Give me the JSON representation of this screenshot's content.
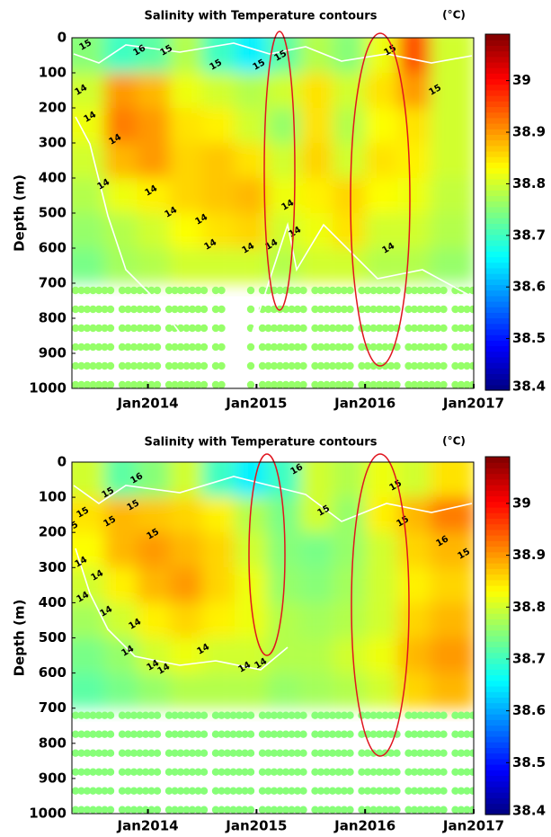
{
  "chart_data": [
    {
      "type": "heatmap",
      "title": "Salinity with Temperature contours",
      "colorbar_label": "(°C)",
      "ylabel": "Depth (m)",
      "xlim": [
        2013.3,
        2017.0
      ],
      "xticks": [
        {
          "value": 2014,
          "label": "Jan2014"
        },
        {
          "value": 2015,
          "label": "Jan2015"
        },
        {
          "value": 2016,
          "label": "Jan2016"
        },
        {
          "value": 2017,
          "label": "Jan2017"
        }
      ],
      "ylim": [
        0,
        1000
      ],
      "y_inverted": true,
      "yticks": [
        0,
        100,
        200,
        300,
        400,
        500,
        600,
        700,
        800,
        900,
        1000
      ],
      "x": [
        2013.45,
        2013.75,
        2014.05,
        2014.35,
        2014.65,
        2014.95,
        2015.25,
        2015.55,
        2015.85,
        2016.15,
        2016.45,
        2016.75
      ],
      "depths": [
        50,
        150,
        250,
        350,
        450,
        550,
        650
      ],
      "z": [
        [
          38.75,
          38.7,
          38.72,
          38.78,
          38.7,
          38.65,
          38.72,
          38.78,
          38.75,
          38.82,
          38.95,
          38.8
        ],
        [
          38.8,
          38.9,
          38.88,
          38.82,
          38.8,
          38.78,
          38.8,
          38.85,
          38.8,
          38.85,
          38.9,
          38.8
        ],
        [
          38.82,
          38.92,
          38.9,
          38.85,
          38.84,
          38.8,
          38.76,
          38.85,
          38.78,
          38.83,
          38.85,
          38.8
        ],
        [
          38.8,
          38.88,
          38.9,
          38.86,
          38.87,
          38.85,
          38.8,
          38.86,
          38.8,
          38.85,
          38.84,
          38.8
        ],
        [
          38.78,
          38.82,
          38.84,
          38.86,
          38.87,
          38.88,
          38.82,
          38.84,
          38.86,
          38.83,
          38.82,
          38.79
        ],
        [
          38.76,
          38.78,
          38.8,
          38.83,
          38.85,
          38.86,
          38.8,
          38.82,
          38.85,
          38.8,
          38.8,
          38.78
        ],
        [
          38.74,
          38.77,
          38.78,
          38.8,
          38.8,
          38.8,
          38.78,
          38.8,
          38.8,
          38.78,
          38.78,
          38.76
        ]
      ],
      "deep_value": 38.76,
      "contour_labels": [
        15,
        16,
        15,
        15,
        15,
        15,
        14,
        14,
        14,
        14,
        14,
        14,
        14,
        14,
        14,
        14,
        14,
        14,
        14,
        15,
        15
      ],
      "clim": [
        38.4,
        39.09
      ],
      "cticks": [
        38.4,
        38.5,
        38.6,
        38.7,
        38.8,
        38.9,
        39
      ],
      "colormap": "jet"
    },
    {
      "type": "heatmap",
      "title": "Salinity with Temperature contours",
      "colorbar_label": "(°C)",
      "ylabel": "Depth (m)",
      "xlim": [
        2013.3,
        2017.0
      ],
      "xticks": [
        {
          "value": 2014,
          "label": "Jan2014"
        },
        {
          "value": 2015,
          "label": "Jan2015"
        },
        {
          "value": 2016,
          "label": "Jan2016"
        },
        {
          "value": 2017,
          "label": "Jan2017"
        }
      ],
      "ylim": [
        0,
        1000
      ],
      "y_inverted": true,
      "yticks": [
        0,
        100,
        200,
        300,
        400,
        500,
        600,
        700,
        800,
        900,
        1000
      ],
      "x": [
        2013.45,
        2013.75,
        2014.05,
        2014.35,
        2014.65,
        2014.95,
        2015.25,
        2015.55,
        2015.85,
        2016.15,
        2016.45,
        2016.75
      ],
      "depths": [
        50,
        150,
        250,
        350,
        450,
        550,
        650
      ],
      "z": [
        [
          38.8,
          38.72,
          38.75,
          38.8,
          38.7,
          38.65,
          38.7,
          38.8,
          38.78,
          38.82,
          38.8,
          38.85
        ],
        [
          38.85,
          38.88,
          38.87,
          38.86,
          38.84,
          38.78,
          38.74,
          38.8,
          38.76,
          38.84,
          38.88,
          38.92
        ],
        [
          38.83,
          38.88,
          38.9,
          38.88,
          38.86,
          38.8,
          38.75,
          38.74,
          38.76,
          38.8,
          38.86,
          38.88
        ],
        [
          38.8,
          38.84,
          38.88,
          38.9,
          38.86,
          38.82,
          38.76,
          38.75,
          38.77,
          38.8,
          38.84,
          38.86
        ],
        [
          38.77,
          38.8,
          38.84,
          38.86,
          38.84,
          38.82,
          38.78,
          38.77,
          38.78,
          38.8,
          38.86,
          38.88
        ],
        [
          38.74,
          38.76,
          38.8,
          38.82,
          38.8,
          38.8,
          38.78,
          38.78,
          38.8,
          38.82,
          38.88,
          38.9
        ],
        [
          38.72,
          38.74,
          38.76,
          38.78,
          38.78,
          38.78,
          38.76,
          38.77,
          38.78,
          38.8,
          38.86,
          38.88
        ]
      ],
      "deep_value": 38.75,
      "contour_labels": [
        15,
        15,
        15,
        15,
        15,
        15,
        16,
        16,
        15,
        15,
        15,
        16,
        14,
        14,
        14,
        14,
        14,
        14,
        14,
        14,
        14,
        14,
        14,
        15
      ],
      "clim": [
        38.4,
        39.09
      ],
      "cticks": [
        38.4,
        38.5,
        38.6,
        38.7,
        38.8,
        38.9,
        39
      ],
      "colormap": "jet"
    }
  ]
}
